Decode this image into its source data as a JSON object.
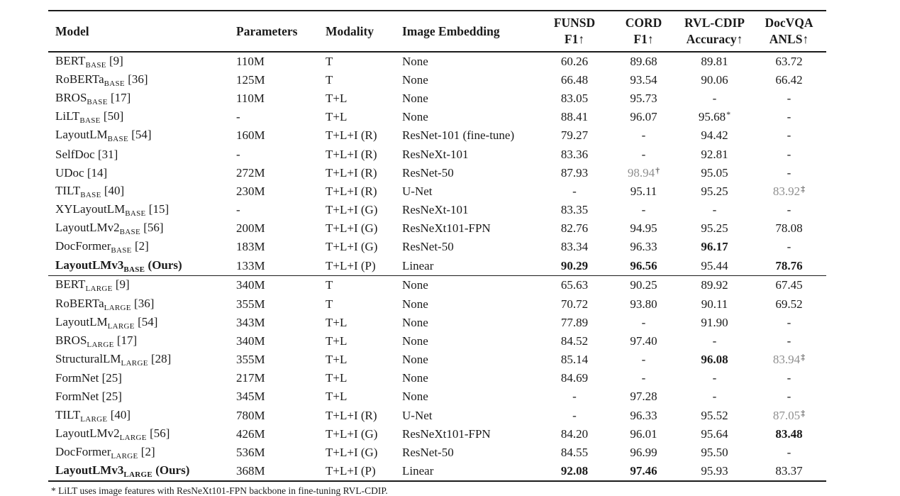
{
  "colors": {
    "text": "#1b1b1b",
    "muted_value": "#8f8f8f"
  },
  "header": {
    "columns": [
      {
        "lines": [
          "Model"
        ],
        "align": "left"
      },
      {
        "lines": [
          "Parameters"
        ],
        "align": "left"
      },
      {
        "lines": [
          "Modality"
        ],
        "align": "left"
      },
      {
        "lines": [
          "Image Embedding"
        ],
        "align": "left"
      },
      {
        "lines": [
          "FUNSD",
          "F1↑"
        ],
        "align": "center"
      },
      {
        "lines": [
          "CORD",
          "F1↑"
        ],
        "align": "center"
      },
      {
        "lines": [
          "RVL-CDIP",
          "Accuracy↑"
        ],
        "align": "center"
      },
      {
        "lines": [
          "DocVQA",
          "ANLS↑"
        ],
        "align": "center"
      }
    ]
  },
  "groups": [
    {
      "name": "base-models",
      "rows": [
        {
          "model": {
            "name": "BERT",
            "sub": "BASE",
            "after": "[9]",
            "bold": false
          },
          "params": "110M",
          "modality": "T",
          "embedding": "None",
          "metrics": [
            {
              "v": "60.26"
            },
            {
              "v": "89.68"
            },
            {
              "v": "89.81"
            },
            {
              "v": "63.72"
            }
          ]
        },
        {
          "model": {
            "name": "RoBERTa",
            "sub": "BASE",
            "after": "[36]",
            "bold": false
          },
          "params": "125M",
          "modality": "T",
          "embedding": "None",
          "metrics": [
            {
              "v": "66.48"
            },
            {
              "v": "93.54"
            },
            {
              "v": "90.06"
            },
            {
              "v": "66.42"
            }
          ]
        },
        {
          "model": {
            "name": "BROS",
            "sub": "BASE",
            "after": "[17]",
            "bold": false
          },
          "params": "110M",
          "modality": "T+L",
          "embedding": "None",
          "metrics": [
            {
              "v": "83.05"
            },
            {
              "v": "95.73"
            },
            {
              "v": "-"
            },
            {
              "v": "-"
            }
          ]
        },
        {
          "model": {
            "name": "LiLT",
            "sub": "BASE",
            "after": "[50]",
            "bold": false
          },
          "params": "-",
          "modality": "T+L",
          "embedding": "None",
          "metrics": [
            {
              "v": "88.41"
            },
            {
              "v": "96.07"
            },
            {
              "v": "95.68",
              "m": "*"
            },
            {
              "v": "-"
            }
          ]
        },
        {
          "model": {
            "name": "LayoutLM",
            "sub": "BASE",
            "after": "[54]",
            "bold": false
          },
          "params": "160M",
          "modality": "T+L+I (R)",
          "embedding": "ResNet-101 (fine-tune)",
          "metrics": [
            {
              "v": "79.27"
            },
            {
              "v": "-"
            },
            {
              "v": "94.42"
            },
            {
              "v": "-"
            }
          ]
        },
        {
          "model": {
            "name": "SelfDoc",
            "sub": "",
            "after": "[31]",
            "bold": false
          },
          "params": "-",
          "modality": "T+L+I (R)",
          "embedding": "ResNeXt-101",
          "metrics": [
            {
              "v": "83.36"
            },
            {
              "v": "-"
            },
            {
              "v": "92.81"
            },
            {
              "v": "-"
            }
          ]
        },
        {
          "model": {
            "name": "UDoc",
            "sub": "",
            "after": "[14]",
            "bold": false
          },
          "params": "272M",
          "modality": "T+L+I (R)",
          "embedding": "ResNet-50",
          "metrics": [
            {
              "v": "87.93"
            },
            {
              "v": "98.94",
              "g": true,
              "m": "†"
            },
            {
              "v": "95.05"
            },
            {
              "v": "-"
            }
          ]
        },
        {
          "model": {
            "name": "TILT",
            "sub": "BASE",
            "after": "[40]",
            "bold": false
          },
          "params": "230M",
          "modality": "T+L+I (R)",
          "embedding": "U-Net",
          "metrics": [
            {
              "v": "-"
            },
            {
              "v": "95.11"
            },
            {
              "v": "95.25"
            },
            {
              "v": "83.92",
              "g": true,
              "m": "‡"
            }
          ]
        },
        {
          "model": {
            "name": "XYLayoutLM",
            "sub": "BASE",
            "after": "[15]",
            "bold": false
          },
          "params": "-",
          "modality": "T+L+I (G)",
          "embedding": "ResNeXt-101",
          "metrics": [
            {
              "v": "83.35"
            },
            {
              "v": "-"
            },
            {
              "v": "-"
            },
            {
              "v": "-"
            }
          ]
        },
        {
          "model": {
            "name": "LayoutLMv2",
            "sub": "BASE",
            "after": "[56]",
            "bold": false
          },
          "params": "200M",
          "modality": "T+L+I (G)",
          "embedding": "ResNeXt101-FPN",
          "metrics": [
            {
              "v": "82.76"
            },
            {
              "v": "94.95"
            },
            {
              "v": "95.25"
            },
            {
              "v": "78.08"
            }
          ]
        },
        {
          "model": {
            "name": "DocFormer",
            "sub": "BASE",
            "after": "[2]",
            "bold": false
          },
          "params": "183M",
          "modality": "T+L+I (G)",
          "embedding": "ResNet-50",
          "metrics": [
            {
              "v": "83.34"
            },
            {
              "v": "96.33"
            },
            {
              "v": "96.17",
              "b": true
            },
            {
              "v": "-"
            }
          ]
        },
        {
          "model": {
            "name": "LayoutLMv3",
            "sub": "BASE",
            "after": "(Ours)",
            "bold": true
          },
          "params": "133M",
          "modality": "T+L+I (P)",
          "embedding": "Linear",
          "metrics": [
            {
              "v": "90.29",
              "b": true
            },
            {
              "v": "96.56",
              "b": true
            },
            {
              "v": "95.44"
            },
            {
              "v": "78.76",
              "b": true
            }
          ]
        }
      ]
    },
    {
      "name": "large-models",
      "rows": [
        {
          "model": {
            "name": "BERT",
            "sub": "LARGE",
            "after": "[9]",
            "bold": false
          },
          "params": "340M",
          "modality": "T",
          "embedding": "None",
          "metrics": [
            {
              "v": "65.63"
            },
            {
              "v": "90.25"
            },
            {
              "v": "89.92"
            },
            {
              "v": "67.45"
            }
          ]
        },
        {
          "model": {
            "name": "RoBERTa",
            "sub": "LARGE",
            "after": "[36]",
            "bold": false
          },
          "params": "355M",
          "modality": "T",
          "embedding": "None",
          "metrics": [
            {
              "v": "70.72"
            },
            {
              "v": "93.80"
            },
            {
              "v": "90.11"
            },
            {
              "v": "69.52"
            }
          ]
        },
        {
          "model": {
            "name": "LayoutLM",
            "sub": "LARGE",
            "after": "[54]",
            "bold": false
          },
          "params": "343M",
          "modality": "T+L",
          "embedding": "None",
          "metrics": [
            {
              "v": "77.89"
            },
            {
              "v": "-"
            },
            {
              "v": "91.90"
            },
            {
              "v": "-"
            }
          ]
        },
        {
          "model": {
            "name": "BROS",
            "sub": "LARGE",
            "after": "[17]",
            "bold": false
          },
          "params": "340M",
          "modality": "T+L",
          "embedding": "None",
          "metrics": [
            {
              "v": "84.52"
            },
            {
              "v": "97.40"
            },
            {
              "v": "-"
            },
            {
              "v": "-"
            }
          ]
        },
        {
          "model": {
            "name": "StructuralLM",
            "sub": "LARGE",
            "after": "[28]",
            "bold": false
          },
          "params": "355M",
          "modality": "T+L",
          "embedding": "None",
          "metrics": [
            {
              "v": "85.14"
            },
            {
              "v": "-"
            },
            {
              "v": "96.08",
              "b": true
            },
            {
              "v": "83.94",
              "g": true,
              "m": "‡"
            }
          ]
        },
        {
          "model": {
            "name": "FormNet",
            "sub": "",
            "after": "[25]",
            "bold": false
          },
          "params": "217M",
          "modality": "T+L",
          "embedding": "None",
          "metrics": [
            {
              "v": "84.69"
            },
            {
              "v": "-"
            },
            {
              "v": "-"
            },
            {
              "v": "-"
            }
          ]
        },
        {
          "model": {
            "name": "FormNet",
            "sub": "",
            "after": "[25]",
            "bold": false
          },
          "params": "345M",
          "modality": "T+L",
          "embedding": "None",
          "metrics": [
            {
              "v": "-"
            },
            {
              "v": "97.28"
            },
            {
              "v": "-"
            },
            {
              "v": "-"
            }
          ]
        },
        {
          "model": {
            "name": "TILT",
            "sub": "LARGE",
            "after": "[40]",
            "bold": false
          },
          "params": "780M",
          "modality": "T+L+I (R)",
          "embedding": "U-Net",
          "metrics": [
            {
              "v": "-"
            },
            {
              "v": "96.33"
            },
            {
              "v": "95.52"
            },
            {
              "v": "87.05",
              "g": true,
              "m": "‡"
            }
          ]
        },
        {
          "model": {
            "name": "LayoutLMv2",
            "sub": "LARGE",
            "after": "[56]",
            "bold": false
          },
          "params": "426M",
          "modality": "T+L+I (G)",
          "embedding": "ResNeXt101-FPN",
          "metrics": [
            {
              "v": "84.20"
            },
            {
              "v": "96.01"
            },
            {
              "v": "95.64"
            },
            {
              "v": "83.48",
              "b": true
            }
          ]
        },
        {
          "model": {
            "name": "DocFormer",
            "sub": "LARGE",
            "after": "[2]",
            "bold": false
          },
          "params": "536M",
          "modality": "T+L+I (G)",
          "embedding": "ResNet-50",
          "metrics": [
            {
              "v": "84.55"
            },
            {
              "v": "96.99"
            },
            {
              "v": "95.50"
            },
            {
              "v": "-"
            }
          ]
        },
        {
          "model": {
            "name": "LayoutLMv3",
            "sub": "LARGE",
            "after": "(Ours)",
            "bold": true
          },
          "params": "368M",
          "modality": "T+L+I (P)",
          "embedding": "Linear",
          "metrics": [
            {
              "v": "92.08",
              "b": true
            },
            {
              "v": "97.46",
              "b": true
            },
            {
              "v": "95.93"
            },
            {
              "v": "83.37"
            }
          ]
        }
      ]
    }
  ],
  "footnote": "* LiLT uses image features with ResNeXt101-FPN backbone in fine-tuning RVL-CDIP."
}
